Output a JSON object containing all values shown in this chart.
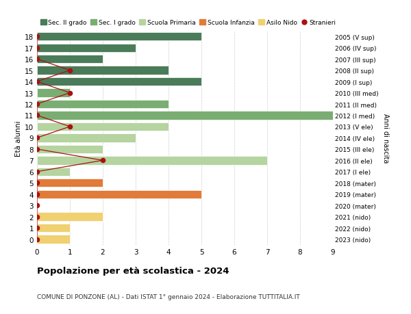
{
  "ages": [
    18,
    17,
    16,
    15,
    14,
    13,
    12,
    11,
    10,
    9,
    8,
    7,
    6,
    5,
    4,
    3,
    2,
    1,
    0
  ],
  "years": [
    "2005 (V sup)",
    "2006 (IV sup)",
    "2007 (III sup)",
    "2008 (II sup)",
    "2009 (I sup)",
    "2010 (III med)",
    "2011 (II med)",
    "2012 (I med)",
    "2013 (V ele)",
    "2014 (IV ele)",
    "2015 (III ele)",
    "2016 (II ele)",
    "2017 (I ele)",
    "2018 (mater)",
    "2019 (mater)",
    "2020 (mater)",
    "2021 (nido)",
    "2022 (nido)",
    "2023 (nido)"
  ],
  "values": [
    5,
    3,
    2,
    4,
    5,
    1,
    4,
    9,
    4,
    3,
    2,
    7,
    1,
    2,
    5,
    0,
    2,
    1,
    1
  ],
  "colors": [
    "#4a7c59",
    "#4a7c59",
    "#4a7c59",
    "#4a7c59",
    "#4a7c59",
    "#7aad72",
    "#7aad72",
    "#7aad72",
    "#b5d4a0",
    "#b5d4a0",
    "#b5d4a0",
    "#b5d4a0",
    "#b5d4a0",
    "#e07b39",
    "#e07b39",
    "#e07b39",
    "#f0d070",
    "#f0d070",
    "#f0d070"
  ],
  "stranieri_ages": [
    18,
    17,
    16,
    15,
    14,
    13,
    12,
    11,
    10,
    9,
    8,
    7,
    6,
    5,
    4,
    3,
    2,
    1,
    0
  ],
  "stranieri_values": [
    0,
    0,
    0,
    1,
    0,
    1,
    0,
    0,
    1,
    0,
    0,
    2,
    0,
    0,
    0,
    0,
    0,
    0,
    0
  ],
  "sec2_color": "#4a7c59",
  "sec1_color": "#7aad72",
  "prim_color": "#b5d4a0",
  "inf_color": "#e07b39",
  "nido_color": "#f0d070",
  "stranieri_color": "#aa1111",
  "title": "Popolazione per età scolastica - 2024",
  "subtitle": "COMUNE DI PONZONE (AL) - Dati ISTAT 1° gennaio 2024 - Elaborazione TUTTITALIA.IT",
  "ylabel_left": "Età alunni",
  "ylabel_right": "Anni di nascita",
  "xlim": [
    0,
    9
  ],
  "ylim": [
    -0.5,
    18.5
  ],
  "bg_color": "#ffffff",
  "grid_color": "#cccccc"
}
